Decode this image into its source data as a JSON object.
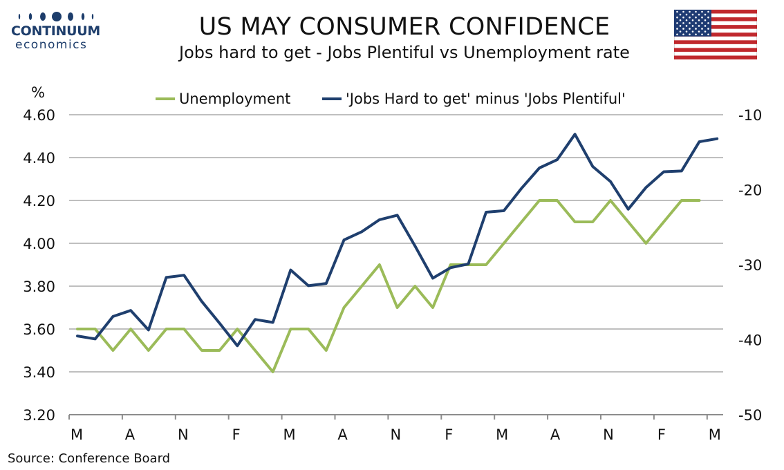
{
  "header": {
    "brand_name": "CONTINUUM",
    "brand_sub": "economics",
    "title": "US MAY CONSUMER CONFIDENCE",
    "subtitle": "Jobs hard to get - Jobs Plentiful vs Unemployment rate"
  },
  "source": "Source: Conference Board",
  "colors": {
    "unemployment": "#9bbb59",
    "jobs_diff": "#1f3f6e",
    "grid": "#bfbfbf",
    "brand": "#1d3d6b",
    "flag_red": "#c0282d",
    "flag_blue": "#1f3b73"
  },
  "icons": {
    "flag": "us-flag-icon",
    "logo": "continuum-economics-logo"
  },
  "chart_data": {
    "type": "line",
    "ylabel_left": "%",
    "ylim_left": [
      3.2,
      4.6
    ],
    "yticks_left": [
      "4.60",
      "4.40",
      "4.20",
      "4.00",
      "3.80",
      "3.60",
      "3.40",
      "3.20"
    ],
    "ylim_right": [
      -50,
      -10
    ],
    "yticks_right": [
      "-10",
      "-20",
      "-30",
      "-40",
      "-50"
    ],
    "x_tick_labels": [
      "M",
      "A",
      "N",
      "F",
      "M",
      "A",
      "N",
      "F",
      "M",
      "A",
      "N",
      "F",
      "M"
    ],
    "x_count": 37,
    "legend_position": "top",
    "grid": true,
    "series": [
      {
        "name": "Unemployment",
        "axis": "left",
        "values": [
          3.6,
          3.6,
          3.5,
          3.6,
          3.5,
          3.6,
          3.6,
          3.5,
          3.5,
          3.6,
          3.5,
          3.4,
          3.6,
          3.6,
          3.5,
          3.7,
          3.8,
          3.9,
          3.7,
          3.8,
          3.7,
          3.9,
          3.9,
          3.9,
          4.0,
          4.1,
          4.2,
          4.2,
          4.1,
          4.1,
          4.2,
          4.1,
          4.0,
          4.1,
          4.2,
          4.2,
          null
        ]
      },
      {
        "name": "'Jobs Hard to get' minus 'Jobs Plentiful'",
        "axis": "right",
        "values": [
          -39.5,
          -39.9,
          -36.9,
          -36.1,
          -38.7,
          -31.7,
          -31.4,
          -34.9,
          -37.8,
          -40.8,
          -37.3,
          -37.7,
          -30.7,
          -32.8,
          -32.5,
          -26.7,
          -25.6,
          -24.0,
          -23.4,
          -27.5,
          -31.8,
          -30.4,
          -29.9,
          -23.0,
          -22.8,
          -19.8,
          -17.1,
          -16.0,
          -12.6,
          -16.9,
          -18.9,
          -22.6,
          -19.7,
          -17.6,
          -17.5,
          -13.6,
          -13.2
        ]
      }
    ]
  }
}
